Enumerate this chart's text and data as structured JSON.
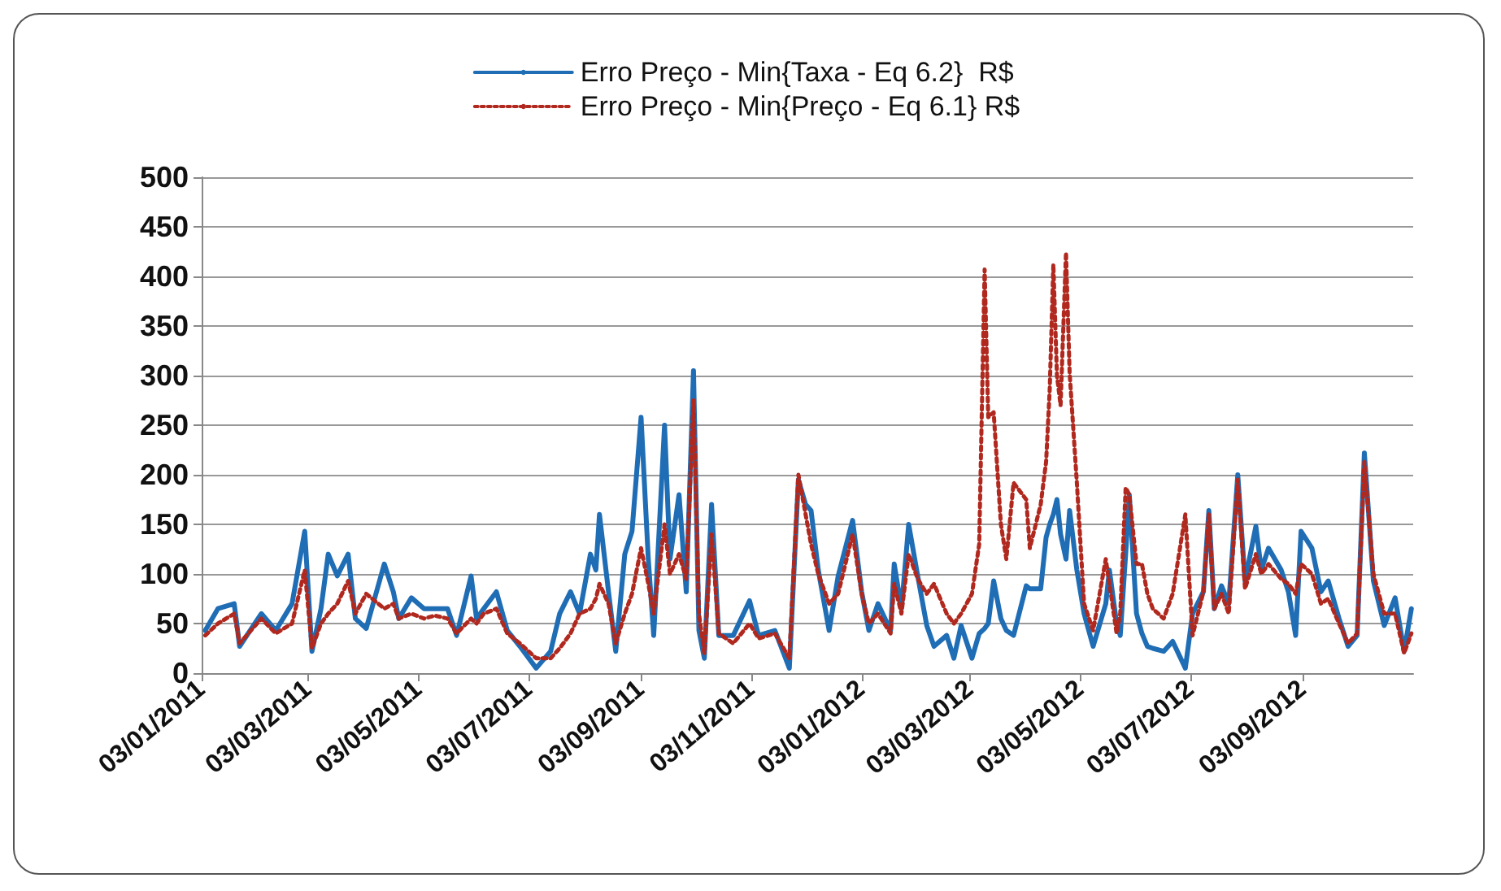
{
  "chart_data": {
    "type": "line",
    "x": [
      "2011-01-05",
      "2011-01-12",
      "2011-01-21",
      "2011-01-24",
      "2011-02-05",
      "2011-02-13",
      "2011-02-22",
      "2011-03-01",
      "2011-03-05",
      "2011-03-10",
      "2011-03-14",
      "2011-03-19",
      "2011-03-25",
      "2011-03-29",
      "2011-04-04",
      "2011-04-14",
      "2011-04-19",
      "2011-04-22",
      "2011-04-29",
      "2011-05-06",
      "2011-05-12",
      "2011-05-19",
      "2011-05-24",
      "2011-06-01",
      "2011-06-04",
      "2011-06-08",
      "2011-06-15",
      "2011-06-21",
      "2011-06-28",
      "2011-07-07",
      "2011-07-15",
      "2011-07-20",
      "2011-07-26",
      "2011-07-31",
      "2011-08-06",
      "2011-08-09",
      "2011-08-11",
      "2011-08-16",
      "2011-08-20",
      "2011-08-25",
      "2011-08-29",
      "2011-09-03",
      "2011-09-07",
      "2011-09-10",
      "2011-09-16",
      "2011-09-19",
      "2011-09-24",
      "2011-09-28",
      "2011-10-02",
      "2011-10-05",
      "2011-10-08",
      "2011-10-12",
      "2011-10-16",
      "2011-10-24",
      "2011-11-02",
      "2011-11-07",
      "2011-11-16",
      "2011-11-24",
      "2011-11-29",
      "2011-12-03",
      "2011-12-06",
      "2011-12-10",
      "2011-12-16",
      "2011-12-21",
      "2011-12-29",
      "2012-01-03",
      "2012-01-07",
      "2012-01-12",
      "2012-01-19",
      "2012-01-21",
      "2012-01-25",
      "2012-01-29",
      "2012-02-03",
      "2012-02-08",
      "2012-02-12",
      "2012-02-19",
      "2012-02-23",
      "2012-02-27",
      "2012-03-04",
      "2012-03-08",
      "2012-03-11",
      "2012-03-13",
      "2012-03-16",
      "2012-03-20",
      "2012-03-23",
      "2012-03-27",
      "2012-04-03",
      "2012-04-05",
      "2012-04-11",
      "2012-04-14",
      "2012-04-16",
      "2012-04-18",
      "2012-04-20",
      "2012-04-22",
      "2012-04-25",
      "2012-04-27",
      "2012-05-01",
      "2012-05-05",
      "2012-05-10",
      "2012-05-17",
      "2012-05-19",
      "2012-05-23",
      "2012-05-25",
      "2012-05-28",
      "2012-05-30",
      "2012-06-03",
      "2012-06-06",
      "2012-06-09",
      "2012-06-12",
      "2012-06-18",
      "2012-06-23",
      "2012-06-30",
      "2012-07-04",
      "2012-07-10",
      "2012-07-13",
      "2012-07-16",
      "2012-07-20",
      "2012-07-24",
      "2012-07-29",
      "2012-08-02",
      "2012-08-08",
      "2012-08-11",
      "2012-08-15",
      "2012-08-22",
      "2012-08-26",
      "2012-08-30",
      "2012-09-02",
      "2012-09-08",
      "2012-09-13",
      "2012-09-17",
      "2012-09-23",
      "2012-09-28",
      "2012-10-03",
      "2012-10-07",
      "2012-10-12",
      "2012-10-18",
      "2012-10-24",
      "2012-10-29",
      "2012-11-02"
    ],
    "series": [
      {
        "name": "Erro Preço - Min{Taxa - Eq 6.2}  R$",
        "color": "#1f6db5",
        "line_style": "solid",
        "values": [
          43,
          65,
          70,
          27,
          60,
          43,
          70,
          143,
          22,
          65,
          120,
          98,
          120,
          55,
          45,
          110,
          82,
          55,
          76,
          65,
          65,
          65,
          38,
          98,
          55,
          65,
          82,
          43,
          27,
          5,
          22,
          60,
          82,
          60,
          120,
          104,
          160,
          82,
          22,
          120,
          143,
          258,
          115,
          38,
          250,
          115,
          180,
          82,
          305,
          43,
          15,
          170,
          38,
          38,
          73,
          38,
          43,
          5,
          195,
          170,
          164,
          104,
          43,
          98,
          154,
          82,
          43,
          70,
          43,
          110,
          65,
          150,
          98,
          48,
          27,
          38,
          15,
          48,
          15,
          40,
          45,
          50,
          93,
          55,
          43,
          38,
          88,
          85,
          85,
          137,
          150,
          160,
          175,
          140,
          115,
          164,
          104,
          60,
          27,
          70,
          104,
          50,
          38,
          120,
          180,
          60,
          40,
          27,
          25,
          22,
          32,
          5,
          60,
          82,
          164,
          65,
          88,
          70,
          200,
          93,
          148,
          104,
          126,
          104,
          82,
          38,
          143,
          126,
          82,
          93,
          55,
          27,
          38,
          222,
          93,
          48,
          76,
          22,
          65
        ]
      },
      {
        "name": "Erro Preço - Min{Preço - Eq 6.1} R$",
        "color": "#b0281e",
        "line_style": "dotted",
        "values": [
          38,
          50,
          60,
          30,
          55,
          40,
          50,
          104,
          25,
          50,
          60,
          70,
          93,
          60,
          80,
          65,
          70,
          55,
          60,
          55,
          58,
          55,
          40,
          55,
          50,
          60,
          65,
          40,
          30,
          15,
          15,
          25,
          40,
          60,
          65,
          75,
          90,
          70,
          30,
          60,
          80,
          126,
          90,
          60,
          150,
          100,
          120,
          95,
          275,
          60,
          20,
          140,
          40,
          30,
          50,
          35,
          40,
          15,
          200,
          160,
          130,
          100,
          70,
          80,
          140,
          80,
          50,
          60,
          40,
          90,
          60,
          120,
          95,
          80,
          90,
          60,
          50,
          60,
          80,
          130,
          407,
          258,
          263,
          150,
          115,
          192,
          175,
          126,
          170,
          213,
          286,
          412,
          300,
          270,
          424,
          303,
          192,
          70,
          43,
          115,
          90,
          40,
          60,
          187,
          180,
          110,
          110,
          80,
          65,
          55,
          80,
          160,
          38,
          82,
          160,
          65,
          80,
          60,
          195,
          85,
          120,
          100,
          110,
          95,
          90,
          80,
          110,
          100,
          70,
          75,
          50,
          30,
          40,
          213,
          100,
          60,
          60,
          20,
          40
        ]
      }
    ],
    "xlim": [
      "2011-01-03",
      "2012-11-03"
    ],
    "xticks": [
      {
        "value": "2011-01-03",
        "label": "03/01/2011"
      },
      {
        "value": "2011-03-03",
        "label": "03/03/2011"
      },
      {
        "value": "2011-05-03",
        "label": "03/05/2011"
      },
      {
        "value": "2011-07-03",
        "label": "03/07/2011"
      },
      {
        "value": "2011-09-03",
        "label": "03/09/2011"
      },
      {
        "value": "2011-11-03",
        "label": "03/11/2011"
      },
      {
        "value": "2012-01-03",
        "label": "03/01/2012"
      },
      {
        "value": "2012-03-03",
        "label": "03/03/2012"
      },
      {
        "value": "2012-05-03",
        "label": "03/05/2012"
      },
      {
        "value": "2012-07-03",
        "label": "03/07/2012"
      },
      {
        "value": "2012-09-03",
        "label": "03/09/2012"
      }
    ],
    "ylim": [
      0,
      500
    ],
    "yticks": [
      0,
      50,
      100,
      150,
      200,
      250,
      300,
      350,
      400,
      450,
      500
    ],
    "grid": "y",
    "legend": "top",
    "marker": "none"
  }
}
